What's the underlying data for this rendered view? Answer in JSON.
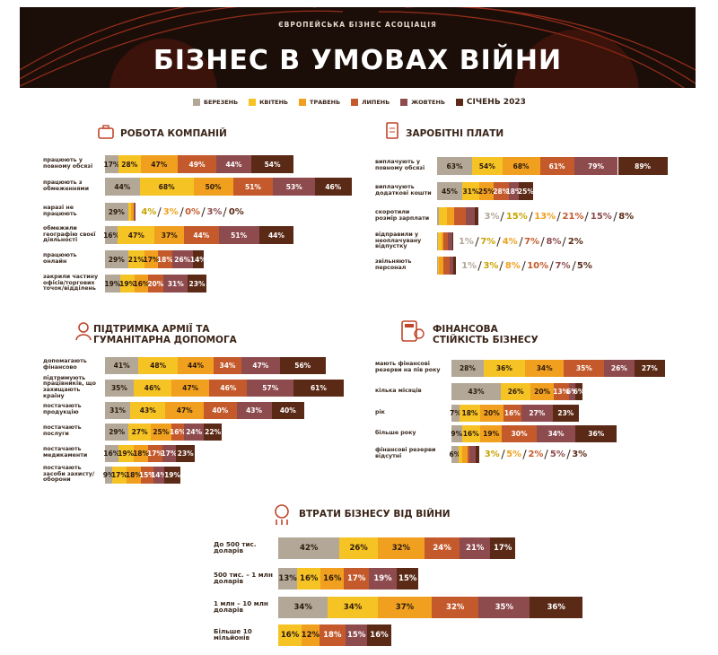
{
  "header": {
    "org": "ЄВРОПЕЙСЬКА БІЗНЕС АСОЦІАЦІЯ",
    "title": "БІЗНЕС В УМОВАХ ВІЙНИ"
  },
  "chart_data": [
    {
      "type": "bar",
      "orientation": "horizontal",
      "stacked": true,
      "title": "РОБОТА КОМПАНІЙ",
      "categories": [
        "працюють у повному обсязі",
        "працюють з обмеженнями",
        "наразі не працюють",
        "обмежили географію своєї діяльності",
        "працюють онлайн",
        "закрили частину офісів/торгових точок/відділень"
      ],
      "series": [
        {
          "name": "БЕРЕЗЕНЬ",
          "color": "#b3a797",
          "values": [
            17,
            44,
            29,
            16,
            29,
            19
          ],
          "value_labels": [
            "17%",
            "44%",
            "29%",
            "16%",
            "29%",
            "19%"
          ]
        },
        {
          "name": "КВІТЕНЬ",
          "color": "#f6c324",
          "values": [
            28,
            68,
            4,
            47,
            21,
            19
          ],
          "value_labels": [
            "28%",
            "68%",
            "4%",
            "47%",
            "21%",
            "19%"
          ]
        },
        {
          "name": "ТРАВЕНЬ",
          "color": "#f0a01e",
          "values": [
            47,
            50,
            3,
            37,
            17,
            16
          ],
          "value_labels": [
            "47%",
            "50%",
            "3%",
            "37%",
            "17%",
            "16%"
          ]
        },
        {
          "name": "ЛИПЕНЬ",
          "color": "#c45a2c",
          "values": [
            49,
            51,
            0,
            44,
            18,
            20
          ],
          "value_labels": [
            "49%",
            "51%",
            "0%",
            "44%",
            "18%",
            "20%"
          ]
        },
        {
          "name": "ЖОВТЕНЬ",
          "color": "#8e4b4e",
          "values": [
            44,
            53,
            3,
            51,
            26,
            31
          ],
          "value_labels": [
            "44%",
            "53%",
            "3%",
            "51%",
            "26%",
            "31%"
          ]
        },
        {
          "name": "СІЧЕНЬ 2023",
          "color": "#5b2a16",
          "values": [
            54,
            46,
            0,
            44,
            14,
            23
          ],
          "value_labels": [
            "54%",
            "46%",
            "0%",
            "44%",
            "14%",
            "23%"
          ]
        }
      ]
    },
    {
      "type": "bar",
      "orientation": "horizontal",
      "stacked": true,
      "title": "ЗАРОБІТНІ ПЛАТИ",
      "categories": [
        "виплачують у повному обсязі",
        "виплачують додаткові кошти",
        "скоротили розмір зарплати",
        "відправили у неоплачувану відпустку",
        "звільняють персонал"
      ],
      "series": [
        {
          "name": "БЕРЕЗЕНЬ",
          "color": "#b3a797",
          "values": [
            63,
            45,
            3,
            1,
            1
          ],
          "value_labels": [
            "63%",
            "45%",
            "3%",
            "1%",
            "1%"
          ]
        },
        {
          "name": "КВІТЕНЬ",
          "color": "#f6c324",
          "values": [
            54,
            31,
            15,
            7,
            3
          ],
          "value_labels": [
            "54%",
            "31%",
            "15%",
            "7%",
            "3%"
          ]
        },
        {
          "name": "ТРАВЕНЬ",
          "color": "#f0a01e",
          "values": [
            68,
            25,
            13,
            4,
            8
          ],
          "value_labels": [
            "68%",
            "25%",
            "13%",
            "4%",
            "8%"
          ]
        },
        {
          "name": "ЛИПЕНЬ",
          "color": "#c45a2c",
          "values": [
            61,
            28,
            21,
            7,
            10
          ],
          "value_labels": [
            "61%",
            "28%",
            "21%",
            "7%",
            "10%"
          ]
        },
        {
          "name": "ЖОВТЕНЬ",
          "color": "#8e4b4e",
          "values": [
            79,
            18,
            15,
            8,
            7
          ],
          "value_labels": [
            "79%",
            "18%",
            "15%",
            "8%",
            "7%"
          ]
        },
        {
          "name": "СІЧЕНЬ 2023",
          "color": "#5b2a16",
          "values": [
            89,
            25,
            8,
            2,
            5
          ],
          "value_labels": [
            "89%",
            "25%",
            "8%",
            "2%",
            "5%"
          ]
        }
      ]
    },
    {
      "type": "bar",
      "orientation": "horizontal",
      "stacked": true,
      "title": "ПІДТРИМКА АРМІЇ ТА ГУМАНІТАРНА ДОПОМОГА",
      "categories": [
        "допомагають фінансово",
        "підтримують працівників, що захищають країну",
        "постачають продукцію",
        "постачають послуги",
        "постачають медикаменти",
        "постачають засоби захисту/оборони"
      ],
      "series": [
        {
          "name": "БЕРЕЗЕНЬ",
          "color": "#b3a797",
          "values": [
            41,
            35,
            31,
            29,
            16,
            9
          ],
          "value_labels": [
            "41%",
            "35%",
            "31%",
            "29%",
            "16%",
            "9%"
          ]
        },
        {
          "name": "КВІТЕНЬ",
          "color": "#f6c324",
          "values": [
            48,
            46,
            43,
            27,
            19,
            17
          ],
          "value_labels": [
            "48%",
            "46%",
            "43%",
            "27%",
            "19%",
            "17%"
          ]
        },
        {
          "name": "ТРАВЕНЬ",
          "color": "#f0a01e",
          "values": [
            44,
            47,
            47,
            25,
            18,
            18
          ],
          "value_labels": [
            "44%",
            "47%",
            "47%",
            "25%",
            "18%",
            "18%"
          ]
        },
        {
          "name": "ЛИПЕНЬ",
          "color": "#c45a2c",
          "values": [
            34,
            46,
            40,
            16,
            17,
            15
          ],
          "value_labels": [
            "34%",
            "46%",
            "40%",
            "16%",
            "17%",
            "15%"
          ]
        },
        {
          "name": "ЖОВТЕНЬ",
          "color": "#8e4b4e",
          "values": [
            47,
            57,
            43,
            24,
            17,
            14
          ],
          "value_labels": [
            "47%",
            "57%",
            "43%",
            "24%",
            "17%",
            "14%"
          ]
        },
        {
          "name": "СІЧЕНЬ 2023",
          "color": "#5b2a16",
          "values": [
            56,
            61,
            40,
            22,
            23,
            19
          ],
          "value_labels": [
            "56%",
            "61%",
            "40%",
            "22%",
            "23%",
            "19%"
          ]
        }
      ]
    },
    {
      "type": "bar",
      "orientation": "horizontal",
      "stacked": true,
      "title": "ФІНАНСОВА СТІЙКІСТЬ БІЗНЕСУ",
      "categories": [
        "мають фінансові резерви на пів року",
        "кілька місяців",
        "рік",
        "більше року",
        "фінансові резерви відсутні"
      ],
      "series": [
        {
          "name": "БЕРЕЗЕНЬ",
          "color": "#b3a797",
          "values": [
            28,
            43,
            7,
            9,
            6
          ],
          "value_labels": [
            "28%",
            "43%",
            "7%",
            "9%",
            "6%"
          ]
        },
        {
          "name": "КВІТЕНЬ",
          "color": "#f6c324",
          "values": [
            36,
            26,
            18,
            16,
            3
          ],
          "value_labels": [
            "36%",
            "26%",
            "18%",
            "16%",
            "3%"
          ]
        },
        {
          "name": "ТРАВЕНЬ",
          "color": "#f0a01e",
          "values": [
            34,
            20,
            20,
            19,
            5
          ],
          "value_labels": [
            "34%",
            "20%",
            "20%",
            "19%",
            "5%"
          ]
        },
        {
          "name": "ЛИПЕНЬ",
          "color": "#c45a2c",
          "values": [
            35,
            13,
            16,
            30,
            2
          ],
          "value_labels": [
            "35%",
            "13%",
            "16%",
            "30%",
            "2%"
          ]
        },
        {
          "name": "ЖОВТЕНЬ",
          "color": "#8e4b4e",
          "values": [
            26,
            6,
            27,
            34,
            5
          ],
          "value_labels": [
            "26%",
            "6%",
            "27%",
            "34%",
            "5%"
          ]
        },
        {
          "name": "СІЧЕНЬ 2023",
          "color": "#5b2a16",
          "values": [
            27,
            6,
            23,
            36,
            3
          ],
          "value_labels": [
            "27%",
            "6%",
            "23%",
            "36%",
            "3%"
          ]
        }
      ]
    },
    {
      "type": "bar",
      "orientation": "horizontal",
      "stacked": true,
      "title": "ВТРАТИ БІЗНЕСУ ВІД ВІЙНИ",
      "categories": [
        "До 500 тис. доларів",
        "500 тис. – 1 млн доларів",
        "1 млн – 10 млн доларів",
        "Більше 10 мільйонів"
      ],
      "series": [
        {
          "name": "БЕРЕЗЕНЬ",
          "color": "#b3a797",
          "values": [
            42,
            13,
            34,
            null
          ],
          "value_labels": [
            "42%",
            "13%",
            "34%",
            null
          ]
        },
        {
          "name": "КВІТЕНЬ",
          "color": "#f6c324",
          "values": [
            26,
            16,
            34,
            16
          ],
          "value_labels": [
            "26%",
            "16%",
            "34%",
            "16%"
          ]
        },
        {
          "name": "ТРАВЕНЬ",
          "color": "#f0a01e",
          "values": [
            32,
            16,
            37,
            12
          ],
          "value_labels": [
            "32%",
            "16%",
            "37%",
            "12%"
          ]
        },
        {
          "name": "ЛИПЕНЬ",
          "color": "#c45a2c",
          "values": [
            24,
            17,
            32,
            18
          ],
          "value_labels": [
            "24%",
            "17%",
            "32%",
            "18%"
          ]
        },
        {
          "name": "ЖОВТЕНЬ",
          "color": "#8e4b4e",
          "values": [
            21,
            19,
            35,
            15
          ],
          "value_labels": [
            "21%",
            "19%",
            "35%",
            "15%"
          ]
        },
        {
          "name": "СІЧЕНЬ 2023",
          "color": "#5b2a16",
          "values": [
            17,
            15,
            36,
            16
          ],
          "value_labels": [
            "17%",
            "15%",
            "36%",
            "16%"
          ]
        }
      ]
    }
  ]
}
